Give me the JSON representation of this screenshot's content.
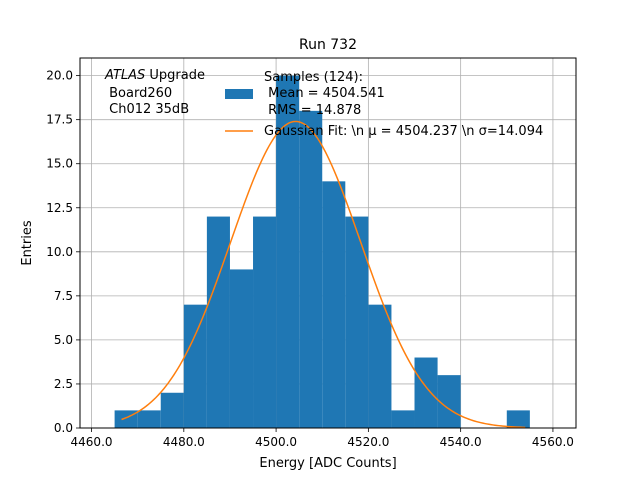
{
  "chart_data": {
    "type": "bar",
    "title": "Run 732",
    "xlabel": "Energy [ADC Counts]",
    "ylabel": "Entries",
    "xlim": [
      4457.5,
      4565.0
    ],
    "ylim": [
      0,
      21.0
    ],
    "xticks": [
      4460,
      4480,
      4500,
      4520,
      4540,
      4560
    ],
    "xtick_labels": [
      "4460.0",
      "4480.0",
      "4500.0",
      "4520.0",
      "4540.0",
      "4560.0"
    ],
    "yticks": [
      0,
      2.5,
      5,
      7.5,
      10,
      12.5,
      15,
      17.5,
      20
    ],
    "ytick_labels": [
      "0.0",
      "2.5",
      "5.0",
      "7.5",
      "10.0",
      "12.5",
      "15.0",
      "17.5",
      "20.0"
    ],
    "grid": true,
    "bin_edges": [
      4465.0,
      4470.0,
      4475.0,
      4480.0,
      4485.0,
      4490.0,
      4495.0,
      4500.0,
      4505.0,
      4510.0,
      4515.0,
      4520.0,
      4525.0,
      4530.0,
      4535.0,
      4540.0,
      4545.0,
      4550.0,
      4555.0
    ],
    "counts": [
      1,
      1,
      2,
      7,
      12,
      9,
      12,
      20,
      18,
      14,
      12,
      7,
      1,
      4,
      3,
      0,
      0,
      1
    ],
    "bar_color": "#1f77b4",
    "fit": {
      "type": "gaussian",
      "mu": 4504.237,
      "sigma": 14.094,
      "amplitude": 17.4,
      "x_range": [
        4466.5,
        4554.0
      ],
      "color": "#ff7f0e"
    },
    "annotation": {
      "italic": "ATLAS",
      "rest": " Upgrade",
      "lines": [
        " Board260",
        " Ch012 35dB"
      ]
    },
    "legend": {
      "placement": "top-right",
      "hist_lines": [
        "Samples (124):",
        " Mean = 4504.541",
        " RMS = 14.878"
      ],
      "fit_label": "Gaussian Fit: \\n μ = 4504.237 \\n σ=14.094"
    }
  }
}
